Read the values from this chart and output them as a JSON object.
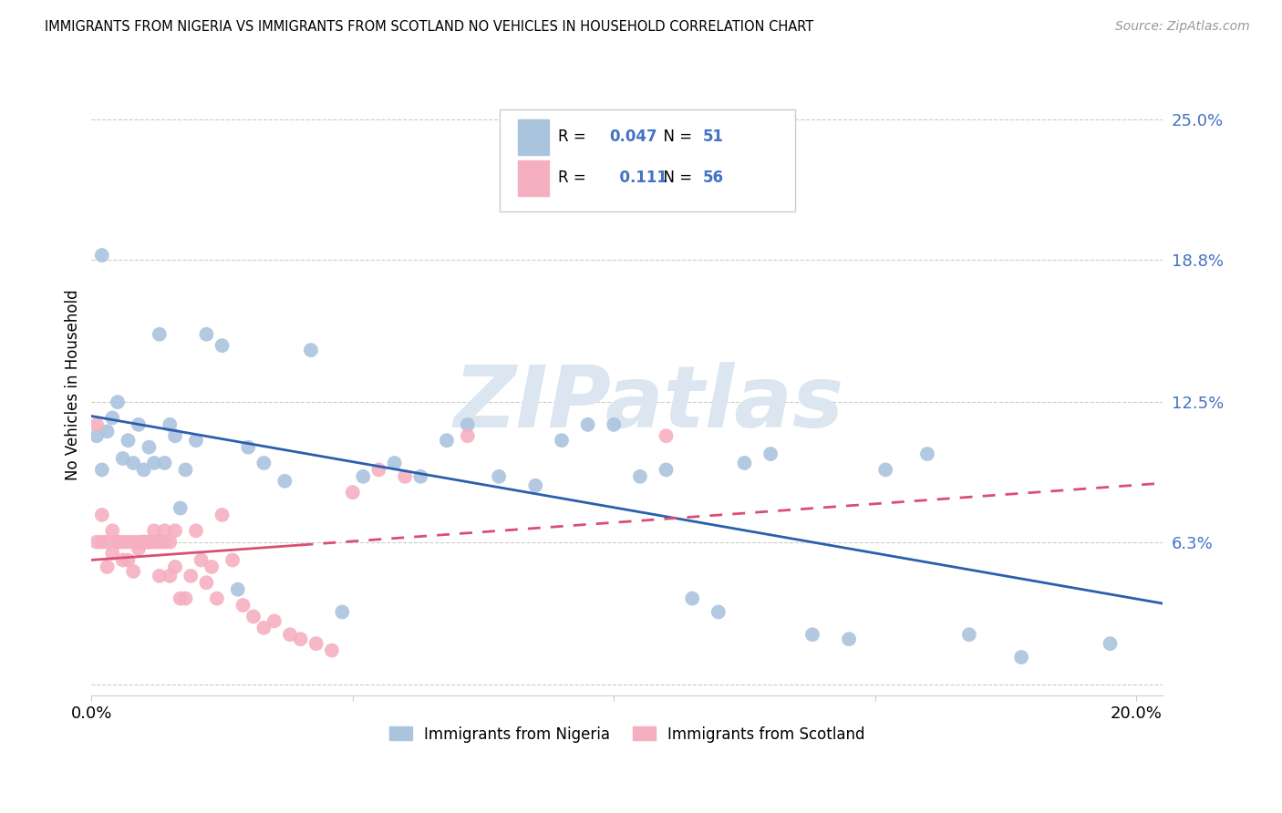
{
  "title": "IMMIGRANTS FROM NIGERIA VS IMMIGRANTS FROM SCOTLAND NO VEHICLES IN HOUSEHOLD CORRELATION CHART",
  "source": "Source: ZipAtlas.com",
  "ylabel": "No Vehicles in Household",
  "xlim": [
    0.0,
    0.205
  ],
  "ylim": [
    -0.005,
    0.27
  ],
  "yticks": [
    0.0,
    0.063,
    0.125,
    0.188,
    0.25
  ],
  "ytick_labels": [
    "",
    "6.3%",
    "12.5%",
    "18.8%",
    "25.0%"
  ],
  "xticks": [
    0.0,
    0.05,
    0.1,
    0.15,
    0.2
  ],
  "xtick_labels": [
    "0.0%",
    "",
    "",
    "",
    "20.0%"
  ],
  "nigeria_R": 0.047,
  "nigeria_N": 51,
  "scotland_R": 0.111,
  "scotland_N": 56,
  "nigeria_color": "#aac4de",
  "scotland_color": "#f5afc0",
  "nigeria_line_color": "#2b5fad",
  "scotland_line_color": "#d94f72",
  "watermark": "ZIPatlas",
  "watermark_color": "#dce6f0",
  "nigeria_x": [
    0.001,
    0.002,
    0.002,
    0.003,
    0.004,
    0.005,
    0.006,
    0.007,
    0.008,
    0.009,
    0.01,
    0.011,
    0.012,
    0.013,
    0.014,
    0.015,
    0.016,
    0.017,
    0.018,
    0.02,
    0.022,
    0.025,
    0.028,
    0.03,
    0.033,
    0.037,
    0.042,
    0.048,
    0.052,
    0.058,
    0.063,
    0.068,
    0.072,
    0.078,
    0.085,
    0.09,
    0.095,
    0.1,
    0.105,
    0.11,
    0.115,
    0.12,
    0.125,
    0.13,
    0.138,
    0.145,
    0.152,
    0.16,
    0.168,
    0.178,
    0.195
  ],
  "nigeria_y": [
    0.11,
    0.095,
    0.19,
    0.112,
    0.118,
    0.125,
    0.1,
    0.108,
    0.098,
    0.115,
    0.095,
    0.105,
    0.098,
    0.155,
    0.098,
    0.115,
    0.11,
    0.078,
    0.095,
    0.108,
    0.155,
    0.15,
    0.042,
    0.105,
    0.098,
    0.09,
    0.148,
    0.032,
    0.092,
    0.098,
    0.092,
    0.108,
    0.115,
    0.092,
    0.088,
    0.108,
    0.115,
    0.115,
    0.092,
    0.095,
    0.038,
    0.032,
    0.098,
    0.102,
    0.022,
    0.02,
    0.095,
    0.102,
    0.022,
    0.012,
    0.018
  ],
  "scotland_x": [
    0.001,
    0.001,
    0.002,
    0.002,
    0.003,
    0.003,
    0.004,
    0.004,
    0.005,
    0.005,
    0.006,
    0.006,
    0.007,
    0.007,
    0.008,
    0.008,
    0.009,
    0.009,
    0.01,
    0.01,
    0.01,
    0.011,
    0.011,
    0.012,
    0.012,
    0.013,
    0.013,
    0.014,
    0.014,
    0.015,
    0.015,
    0.016,
    0.016,
    0.017,
    0.018,
    0.019,
    0.02,
    0.021,
    0.022,
    0.023,
    0.024,
    0.025,
    0.027,
    0.029,
    0.031,
    0.033,
    0.035,
    0.038,
    0.04,
    0.043,
    0.046,
    0.05,
    0.055,
    0.06,
    0.072,
    0.11
  ],
  "scotland_y": [
    0.115,
    0.063,
    0.063,
    0.075,
    0.063,
    0.052,
    0.068,
    0.058,
    0.063,
    0.063,
    0.063,
    0.055,
    0.063,
    0.055,
    0.063,
    0.05,
    0.063,
    0.06,
    0.063,
    0.063,
    0.063,
    0.063,
    0.063,
    0.068,
    0.063,
    0.063,
    0.048,
    0.063,
    0.068,
    0.063,
    0.048,
    0.068,
    0.052,
    0.038,
    0.038,
    0.048,
    0.068,
    0.055,
    0.045,
    0.052,
    0.038,
    0.075,
    0.055,
    0.035,
    0.03,
    0.025,
    0.028,
    0.022,
    0.02,
    0.018,
    0.015,
    0.085,
    0.095,
    0.092,
    0.11,
    0.11
  ]
}
